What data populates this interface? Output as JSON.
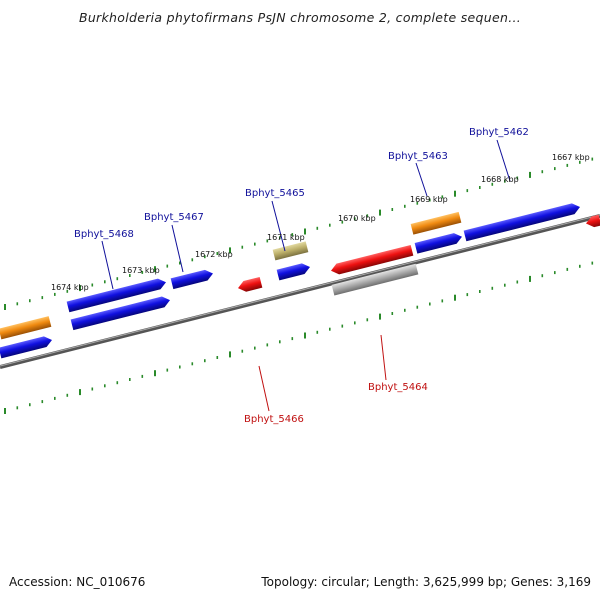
{
  "title": "Burkholderia phytofirmans PsJN chromosome 2, complete sequen...",
  "footer": {
    "accession": "Accession: NC_010676",
    "summary": "Topology: circular; Length: 3,625,999 bp; Genes: 3,169"
  },
  "colors": {
    "forward_gene": "#1010e0",
    "reverse_gene": "#ee1111",
    "orange_gene": "#f08a10",
    "olive_gene": "#bdb06a",
    "gray_gene": "#a8a8a8",
    "backbone": "#777777",
    "scale_dots": "#2a8a2a",
    "label_forward": "#10109a",
    "label_reverse": "#c01010"
  },
  "scale_labels": [
    "1674 kbp",
    "1673 kbp",
    "1672 kbp",
    "1671 kbp",
    "1670 kbp",
    "1669 kbp",
    "1668 kbp",
    "1667 kbp"
  ],
  "gene_labels": [
    {
      "text": "Bphyt_5468",
      "strand": "forward"
    },
    {
      "text": "Bphyt_5467",
      "strand": "forward"
    },
    {
      "text": "Bphyt_5465",
      "strand": "forward"
    },
    {
      "text": "Bphyt_5463",
      "strand": "forward"
    },
    {
      "text": "Bphyt_5462",
      "strand": "forward"
    },
    {
      "text": "Bphyt_5466",
      "strand": "reverse"
    },
    {
      "text": "Bphyt_5464",
      "strand": "reverse"
    }
  ]
}
